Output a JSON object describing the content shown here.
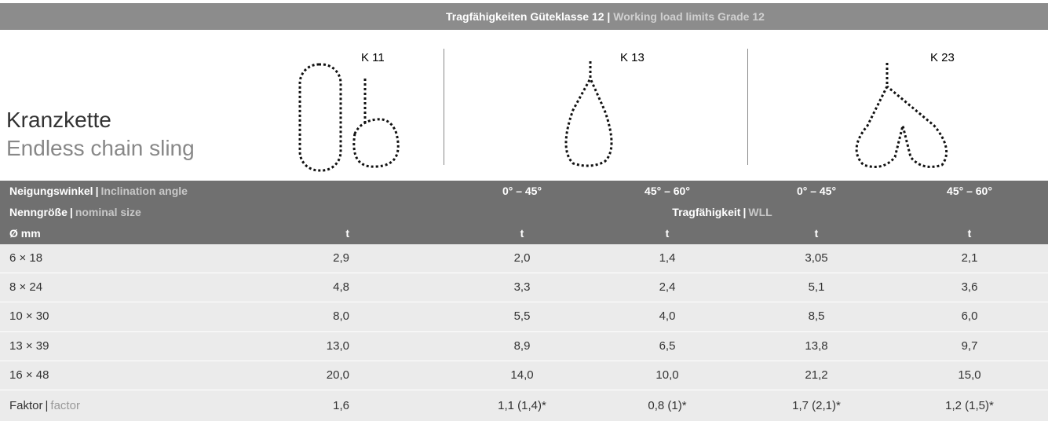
{
  "separator": "|",
  "header": {
    "title_de": "Tragfähigkeiten Güteklasse 12",
    "title_en": "Working load limits Grade 12"
  },
  "product": {
    "name_de": "Kranzkette",
    "name_en": "Endless chain sling"
  },
  "diagrams": [
    {
      "label": "K 11"
    },
    {
      "label": "K 13"
    },
    {
      "label": "K 23"
    }
  ],
  "table": {
    "angle_row": {
      "label_de": "Neigungswinkel",
      "label_en": "Inclination angle",
      "cells": [
        null,
        null,
        "0° – 45°",
        "45° – 60°",
        "0° – 45°",
        "45° – 60°"
      ]
    },
    "size_row": {
      "label_de": "Nenngröße",
      "label_en": "nominal size",
      "wll_de": "Tragfähigkeit",
      "wll_en": "WLL"
    },
    "unit_row": [
      "Ø mm",
      "t",
      "t",
      "t",
      "t",
      "t"
    ],
    "rows": [
      [
        "6 × 18",
        "2,9",
        "2,0",
        "1,4",
        "3,05",
        "2,1"
      ],
      [
        "8 × 24",
        "4,8",
        "3,3",
        "2,4",
        "5,1",
        "3,6"
      ],
      [
        "10 × 30",
        "8,0",
        "5,5",
        "4,0",
        "8,5",
        "6,0"
      ],
      [
        "13 × 39",
        "13,0",
        "8,9",
        "6,5",
        "13,8",
        "9,7"
      ],
      [
        "16 × 48",
        "20,0",
        "14,0",
        "10,0",
        "21,2",
        "15,0"
      ]
    ],
    "factor_row": {
      "label_de": "Faktor",
      "label_en": "factor",
      "cells": [
        "1,6",
        "1,1 (1,4)*",
        "0,8 (1)*",
        "1,7 (2,1)*",
        "1,2 (1,5)*"
      ]
    }
  }
}
